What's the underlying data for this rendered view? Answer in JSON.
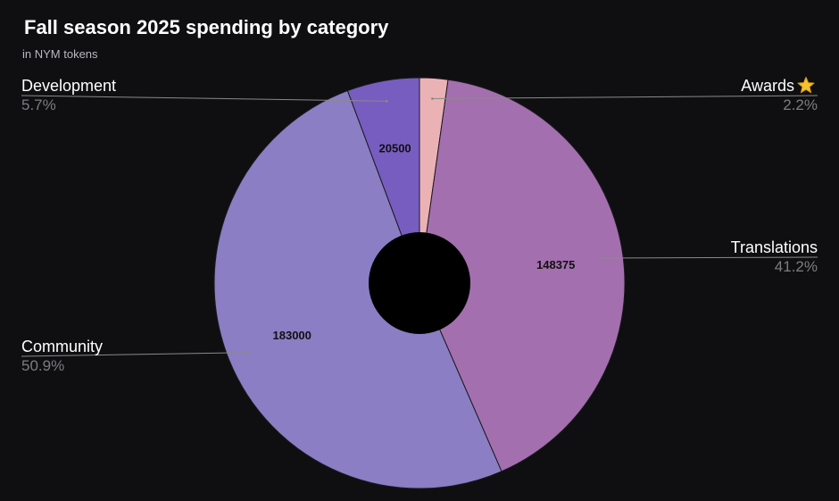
{
  "chart_data": {
    "type": "pie",
    "title": "Fall season 2025 spending by category",
    "subtitle": "in NYM tokens",
    "categories": [
      "Awards",
      "Translations",
      "Community",
      "Development"
    ],
    "values": [
      8000,
      148375,
      183000,
      20500
    ],
    "percent_labels": [
      "2.2%",
      "41.2%",
      "50.9%",
      "5.7%"
    ],
    "slice_labels": [
      "",
      "148375",
      "183000",
      "20500"
    ],
    "colors": [
      "#ebb2b5",
      "#a46faf",
      "#8b7ec4",
      "#775dc0"
    ],
    "icons": [
      "star-icon",
      "",
      "",
      ""
    ],
    "donut": true
  }
}
